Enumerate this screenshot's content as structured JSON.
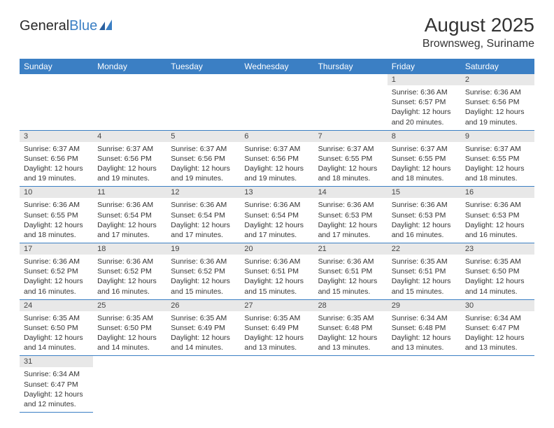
{
  "logo": {
    "text1": "General",
    "text2": "Blue"
  },
  "title": "August 2025",
  "location": "Brownsweg, Suriname",
  "colors": {
    "header_bg": "#3b7fc4",
    "header_fg": "#ffffff",
    "daynum_bg": "#e8e8e8",
    "row_border": "#3b7fc4",
    "text": "#333333",
    "page_bg": "#ffffff"
  },
  "fonts": {
    "title_size": 28,
    "location_size": 16,
    "th_size": 12,
    "daynum_size": 11,
    "body_size": 10.5
  },
  "weekdays": [
    "Sunday",
    "Monday",
    "Tuesday",
    "Wednesday",
    "Thursday",
    "Friday",
    "Saturday"
  ],
  "weeks": [
    [
      null,
      null,
      null,
      null,
      null,
      {
        "n": "1",
        "sr": "Sunrise: 6:36 AM",
        "ss": "Sunset: 6:57 PM",
        "d1": "Daylight: 12 hours",
        "d2": "and 20 minutes."
      },
      {
        "n": "2",
        "sr": "Sunrise: 6:36 AM",
        "ss": "Sunset: 6:56 PM",
        "d1": "Daylight: 12 hours",
        "d2": "and 19 minutes."
      }
    ],
    [
      {
        "n": "3",
        "sr": "Sunrise: 6:37 AM",
        "ss": "Sunset: 6:56 PM",
        "d1": "Daylight: 12 hours",
        "d2": "and 19 minutes."
      },
      {
        "n": "4",
        "sr": "Sunrise: 6:37 AM",
        "ss": "Sunset: 6:56 PM",
        "d1": "Daylight: 12 hours",
        "d2": "and 19 minutes."
      },
      {
        "n": "5",
        "sr": "Sunrise: 6:37 AM",
        "ss": "Sunset: 6:56 PM",
        "d1": "Daylight: 12 hours",
        "d2": "and 19 minutes."
      },
      {
        "n": "6",
        "sr": "Sunrise: 6:37 AM",
        "ss": "Sunset: 6:56 PM",
        "d1": "Daylight: 12 hours",
        "d2": "and 19 minutes."
      },
      {
        "n": "7",
        "sr": "Sunrise: 6:37 AM",
        "ss": "Sunset: 6:55 PM",
        "d1": "Daylight: 12 hours",
        "d2": "and 18 minutes."
      },
      {
        "n": "8",
        "sr": "Sunrise: 6:37 AM",
        "ss": "Sunset: 6:55 PM",
        "d1": "Daylight: 12 hours",
        "d2": "and 18 minutes."
      },
      {
        "n": "9",
        "sr": "Sunrise: 6:37 AM",
        "ss": "Sunset: 6:55 PM",
        "d1": "Daylight: 12 hours",
        "d2": "and 18 minutes."
      }
    ],
    [
      {
        "n": "10",
        "sr": "Sunrise: 6:36 AM",
        "ss": "Sunset: 6:55 PM",
        "d1": "Daylight: 12 hours",
        "d2": "and 18 minutes."
      },
      {
        "n": "11",
        "sr": "Sunrise: 6:36 AM",
        "ss": "Sunset: 6:54 PM",
        "d1": "Daylight: 12 hours",
        "d2": "and 17 minutes."
      },
      {
        "n": "12",
        "sr": "Sunrise: 6:36 AM",
        "ss": "Sunset: 6:54 PM",
        "d1": "Daylight: 12 hours",
        "d2": "and 17 minutes."
      },
      {
        "n": "13",
        "sr": "Sunrise: 6:36 AM",
        "ss": "Sunset: 6:54 PM",
        "d1": "Daylight: 12 hours",
        "d2": "and 17 minutes."
      },
      {
        "n": "14",
        "sr": "Sunrise: 6:36 AM",
        "ss": "Sunset: 6:53 PM",
        "d1": "Daylight: 12 hours",
        "d2": "and 17 minutes."
      },
      {
        "n": "15",
        "sr": "Sunrise: 6:36 AM",
        "ss": "Sunset: 6:53 PM",
        "d1": "Daylight: 12 hours",
        "d2": "and 16 minutes."
      },
      {
        "n": "16",
        "sr": "Sunrise: 6:36 AM",
        "ss": "Sunset: 6:53 PM",
        "d1": "Daylight: 12 hours",
        "d2": "and 16 minutes."
      }
    ],
    [
      {
        "n": "17",
        "sr": "Sunrise: 6:36 AM",
        "ss": "Sunset: 6:52 PM",
        "d1": "Daylight: 12 hours",
        "d2": "and 16 minutes."
      },
      {
        "n": "18",
        "sr": "Sunrise: 6:36 AM",
        "ss": "Sunset: 6:52 PM",
        "d1": "Daylight: 12 hours",
        "d2": "and 16 minutes."
      },
      {
        "n": "19",
        "sr": "Sunrise: 6:36 AM",
        "ss": "Sunset: 6:52 PM",
        "d1": "Daylight: 12 hours",
        "d2": "and 15 minutes."
      },
      {
        "n": "20",
        "sr": "Sunrise: 6:36 AM",
        "ss": "Sunset: 6:51 PM",
        "d1": "Daylight: 12 hours",
        "d2": "and 15 minutes."
      },
      {
        "n": "21",
        "sr": "Sunrise: 6:36 AM",
        "ss": "Sunset: 6:51 PM",
        "d1": "Daylight: 12 hours",
        "d2": "and 15 minutes."
      },
      {
        "n": "22",
        "sr": "Sunrise: 6:35 AM",
        "ss": "Sunset: 6:51 PM",
        "d1": "Daylight: 12 hours",
        "d2": "and 15 minutes."
      },
      {
        "n": "23",
        "sr": "Sunrise: 6:35 AM",
        "ss": "Sunset: 6:50 PM",
        "d1": "Daylight: 12 hours",
        "d2": "and 14 minutes."
      }
    ],
    [
      {
        "n": "24",
        "sr": "Sunrise: 6:35 AM",
        "ss": "Sunset: 6:50 PM",
        "d1": "Daylight: 12 hours",
        "d2": "and 14 minutes."
      },
      {
        "n": "25",
        "sr": "Sunrise: 6:35 AM",
        "ss": "Sunset: 6:50 PM",
        "d1": "Daylight: 12 hours",
        "d2": "and 14 minutes."
      },
      {
        "n": "26",
        "sr": "Sunrise: 6:35 AM",
        "ss": "Sunset: 6:49 PM",
        "d1": "Daylight: 12 hours",
        "d2": "and 14 minutes."
      },
      {
        "n": "27",
        "sr": "Sunrise: 6:35 AM",
        "ss": "Sunset: 6:49 PM",
        "d1": "Daylight: 12 hours",
        "d2": "and 13 minutes."
      },
      {
        "n": "28",
        "sr": "Sunrise: 6:35 AM",
        "ss": "Sunset: 6:48 PM",
        "d1": "Daylight: 12 hours",
        "d2": "and 13 minutes."
      },
      {
        "n": "29",
        "sr": "Sunrise: 6:34 AM",
        "ss": "Sunset: 6:48 PM",
        "d1": "Daylight: 12 hours",
        "d2": "and 13 minutes."
      },
      {
        "n": "30",
        "sr": "Sunrise: 6:34 AM",
        "ss": "Sunset: 6:47 PM",
        "d1": "Daylight: 12 hours",
        "d2": "and 13 minutes."
      }
    ],
    [
      {
        "n": "31",
        "sr": "Sunrise: 6:34 AM",
        "ss": "Sunset: 6:47 PM",
        "d1": "Daylight: 12 hours",
        "d2": "and 12 minutes."
      },
      null,
      null,
      null,
      null,
      null,
      null
    ]
  ]
}
